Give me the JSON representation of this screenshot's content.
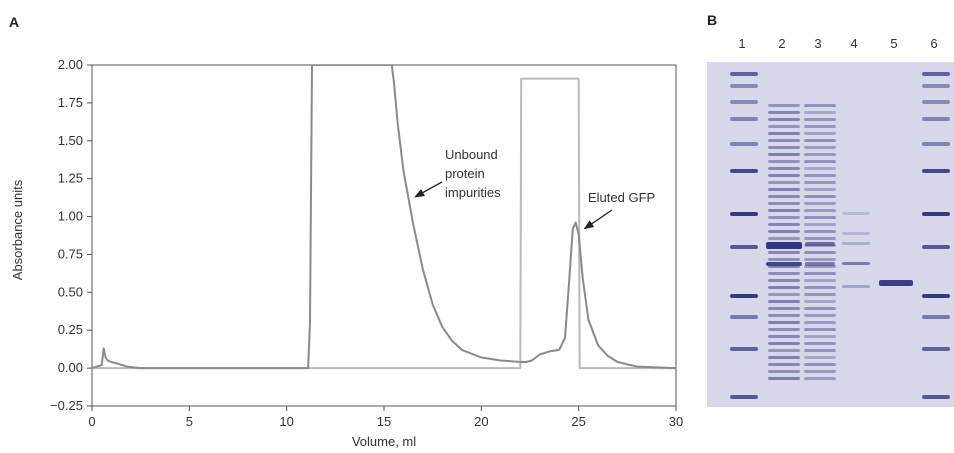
{
  "panel_a_label": "A",
  "panel_b_label": "B",
  "chart_data": {
    "type": "line",
    "xlabel": "Volume, ml",
    "ylabel": "Absorbance units",
    "xlim": [
      0,
      30
    ],
    "ylim": [
      -0.25,
      2.0
    ],
    "x_ticks": [
      0,
      5,
      10,
      15,
      20,
      25,
      30
    ],
    "y_ticks": [
      "-0.25",
      "0.00",
      "0.25",
      "0.50",
      "0.75",
      "1.00",
      "1.25",
      "1.50",
      "1.75",
      "2.00"
    ],
    "grid": false,
    "series": [
      {
        "color": "#8a8a8a",
        "x": [
          0,
          0.5,
          0.6,
          0.7,
          0.8,
          1.0,
          1.3,
          1.8,
          2.5,
          3.5,
          6,
          9,
          11.1,
          11.2,
          11.3,
          12,
          14,
          15.4,
          15.5,
          15.7,
          16.0,
          16.5,
          17.0,
          17.5,
          18.0,
          18.5,
          19.0,
          20.0,
          21.0,
          22.0,
          22.3,
          22.6,
          23.0,
          23.5,
          24.0,
          24.3,
          24.5,
          24.7,
          24.85,
          25.0,
          25.2,
          25.5,
          26.0,
          26.5,
          27.0,
          28.0,
          30.0
        ],
        "y": [
          0.0,
          0.02,
          0.13,
          0.07,
          0.05,
          0.04,
          0.03,
          0.01,
          0.0,
          0.0,
          0.0,
          0.0,
          0.0,
          0.3,
          2.0,
          2.0,
          2.0,
          2.0,
          1.9,
          1.62,
          1.3,
          0.95,
          0.65,
          0.42,
          0.27,
          0.18,
          0.12,
          0.07,
          0.05,
          0.04,
          0.04,
          0.05,
          0.09,
          0.11,
          0.12,
          0.2,
          0.55,
          0.92,
          0.96,
          0.88,
          0.6,
          0.32,
          0.15,
          0.08,
          0.04,
          0.01,
          0.0
        ]
      },
      {
        "color": "#b9b9b9",
        "x": [
          0,
          22.0,
          22.05,
          25.0,
          25.05,
          30.0
        ],
        "y": [
          0.0,
          0.0,
          1.91,
          1.91,
          0.0,
          0.0
        ]
      }
    ],
    "annotations": [
      {
        "lines": [
          "Unbound",
          "protein",
          "impurities"
        ],
        "arrow_to": [
          16.6,
          1.13
        ]
      },
      {
        "lines": [
          "Eluted GFP"
        ],
        "arrow_to": [
          25.3,
          0.92
        ]
      }
    ]
  },
  "gel": {
    "lane_labels": [
      "1",
      "2",
      "3",
      "4",
      "5",
      "6"
    ],
    "background": "#d7d8ea",
    "band_color": "#2b2f7a"
  }
}
